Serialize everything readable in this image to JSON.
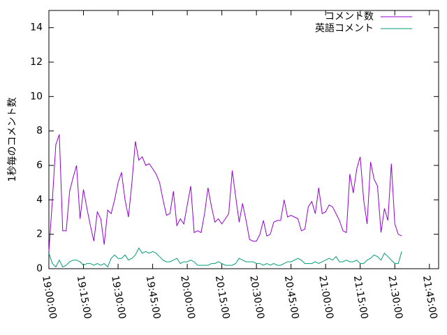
{
  "chart_data": {
    "type": "line",
    "ylabel": "1秒毎のコメント数",
    "legend": "top-right",
    "xlim": [
      "19:00:00",
      "21:49:00"
    ],
    "xticks": [
      "19:00:00",
      "19:15:00",
      "19:30:00",
      "19:45:00",
      "20:00:00",
      "20:15:00",
      "20:30:00",
      "20:45:00",
      "21:00:00",
      "21:15:00",
      "21:30:00",
      "21:45:00"
    ],
    "ylim": [
      0,
      15
    ],
    "yticks": [
      0,
      2,
      4,
      6,
      8,
      10,
      12,
      14
    ],
    "x": [
      "19:00:00",
      "19:01:30",
      "19:03:00",
      "19:04:30",
      "19:06:00",
      "19:07:30",
      "19:09:00",
      "19:10:30",
      "19:12:00",
      "19:13:30",
      "19:15:00",
      "19:16:30",
      "19:18:00",
      "19:19:30",
      "19:21:00",
      "19:22:30",
      "19:24:00",
      "19:25:30",
      "19:27:00",
      "19:28:30",
      "19:30:00",
      "19:31:30",
      "19:33:00",
      "19:34:30",
      "19:36:00",
      "19:37:30",
      "19:39:00",
      "19:40:30",
      "19:42:00",
      "19:43:30",
      "19:45:00",
      "19:46:30",
      "19:48:00",
      "19:49:30",
      "19:51:00",
      "19:52:30",
      "19:54:00",
      "19:55:30",
      "19:57:00",
      "19:58:30",
      "20:00:00",
      "20:01:30",
      "20:03:00",
      "20:04:30",
      "20:06:00",
      "20:07:30",
      "20:09:00",
      "20:10:30",
      "20:12:00",
      "20:13:30",
      "20:15:00",
      "20:16:30",
      "20:18:00",
      "20:19:30",
      "20:21:00",
      "20:22:30",
      "20:24:00",
      "20:25:30",
      "20:27:00",
      "20:28:30",
      "20:30:00",
      "20:31:30",
      "20:33:00",
      "20:34:30",
      "20:36:00",
      "20:37:30",
      "20:39:00",
      "20:40:30",
      "20:42:00",
      "20:43:30",
      "20:45:00",
      "20:46:30",
      "20:48:00",
      "20:49:30",
      "20:51:00",
      "20:52:30",
      "20:54:00",
      "20:55:30",
      "20:57:00",
      "20:58:30",
      "21:00:00",
      "21:01:30",
      "21:03:00",
      "21:04:30",
      "21:06:00",
      "21:07:30",
      "21:09:00",
      "21:10:30",
      "21:12:00",
      "21:13:30",
      "21:15:00",
      "21:16:30",
      "21:18:00",
      "21:19:30",
      "21:21:00",
      "21:22:30",
      "21:24:00",
      "21:25:30",
      "21:27:00",
      "21:28:30",
      "21:30:00",
      "21:31:30",
      "21:33:00"
    ],
    "series": [
      {
        "name": "コメント数",
        "color": "#9400d3",
        "values": [
          1.0,
          4,
          7.2,
          7.8,
          2.2,
          2.2,
          4.5,
          5.3,
          6.0,
          2.9,
          4.6,
          3.5,
          2.5,
          1.6,
          3.3,
          2.9,
          1.4,
          3.4,
          3.2,
          4.0,
          5.0,
          5.6,
          4.0,
          3.0,
          5.0,
          7.4,
          6.3,
          6.5,
          6.0,
          6.1,
          5.8,
          5.5,
          5.0,
          4.0,
          3.1,
          3.2,
          4.5,
          2.5,
          2.9,
          2.6,
          3.7,
          4.8,
          2.1,
          2.2,
          2.1,
          3.2,
          4.7,
          3.6,
          2.7,
          2.9,
          2.6,
          2.9,
          3.2,
          5.7,
          4.2,
          2.7,
          3.8,
          2.8,
          1.7,
          1.6,
          1.6,
          2.0,
          2.8,
          1.9,
          2.0,
          2.7,
          2.8,
          2.8,
          4.0,
          3.0,
          3.1,
          3.0,
          2.9,
          2.2,
          2.3,
          3.6,
          3.9,
          3.2,
          4.7,
          3.2,
          3.3,
          3.7,
          3.6,
          3.2,
          2.8,
          2.2,
          2.1,
          5.5,
          4.4,
          5.8,
          6.5,
          4.0,
          2.6,
          6.2,
          5.2,
          4.8,
          2.1,
          3.5,
          2.8,
          6.1,
          2.6,
          2.0,
          1.9
        ]
      },
      {
        "name": "英語コメント",
        "color": "#009e73",
        "values": [
          0.9,
          0.3,
          0.1,
          0.5,
          0.1,
          0.2,
          0.4,
          0.5,
          0.5,
          0.4,
          0.2,
          0.3,
          0.3,
          0.2,
          0.3,
          0.2,
          0.3,
          0.1,
          0.6,
          0.8,
          0.6,
          0.6,
          0.8,
          0.5,
          0.6,
          0.8,
          1.2,
          0.9,
          1.0,
          0.9,
          1.0,
          0.9,
          0.7,
          0.5,
          0.4,
          0.4,
          0.5,
          0.6,
          0.3,
          0.4,
          0.4,
          0.5,
          0.4,
          0.2,
          0.2,
          0.2,
          0.2,
          0.3,
          0.3,
          0.4,
          0.3,
          0.2,
          0.2,
          0.2,
          0.3,
          0.6,
          0.5,
          0.4,
          0.4,
          0.4,
          0.3,
          0.3,
          0.2,
          0.3,
          0.2,
          0.3,
          0.2,
          0.2,
          0.3,
          0.4,
          0.4,
          0.5,
          0.6,
          0.5,
          0.3,
          0.3,
          0.3,
          0.4,
          0.3,
          0.4,
          0.5,
          0.6,
          0.5,
          0.7,
          0.4,
          0.4,
          0.5,
          0.4,
          0.4,
          0.5,
          0.3,
          0.3,
          0.5,
          0.6,
          0.8,
          0.7,
          0.5,
          0.9,
          0.7,
          0.5,
          0.3,
          0.3,
          1.0
        ]
      }
    ]
  }
}
